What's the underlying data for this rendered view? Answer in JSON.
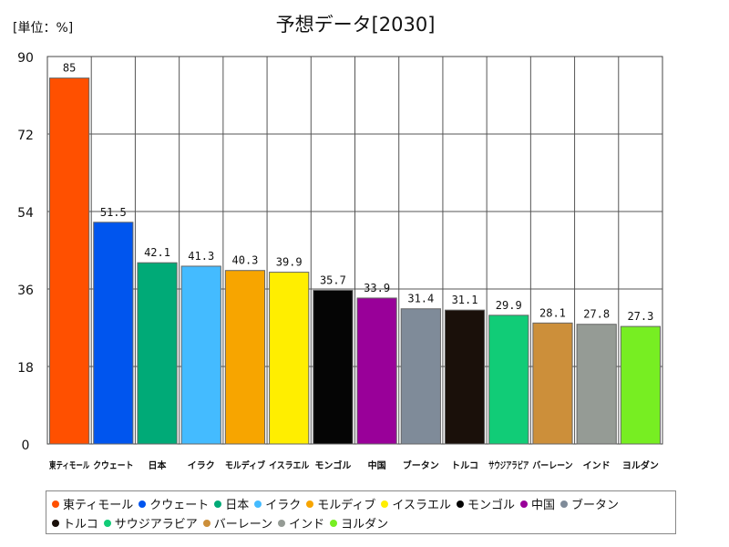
{
  "chart_data": {
    "type": "bar",
    "title": "予想データ[2030]",
    "unit_label": "[単位：%]",
    "xlabel": "",
    "ylabel": "",
    "ylim": [
      0,
      90
    ],
    "yticks": [
      0,
      18,
      36,
      54,
      72,
      90
    ],
    "grid": true,
    "legend_position": "bottom",
    "categories": [
      "東ティモール",
      "クウェート",
      "日本",
      "イラク",
      "モルディブ",
      "イスラエル",
      "モンゴル",
      "中国",
      "ブータン",
      "トルコ",
      "サウジアラビア",
      "バーレーン",
      "インド",
      "ヨルダン"
    ],
    "values": [
      85,
      51.5,
      42.1,
      41.3,
      40.3,
      39.9,
      35.7,
      33.9,
      31.4,
      31.1,
      29.9,
      28.1,
      27.8,
      27.3
    ],
    "value_labels": [
      "85",
      "51.5",
      "42.1",
      "41.3",
      "40.3",
      "39.9",
      "35.7",
      "33.9",
      "31.4",
      "31.1",
      "29.9",
      "28.1",
      "27.8",
      "27.3"
    ],
    "colors": [
      "#ff5000",
      "#0055ee",
      "#00aa77",
      "#44bbff",
      "#f7a500",
      "#ffee00",
      "#050505",
      "#990099",
      "#7f8b99",
      "#1a100a",
      "#11cc77",
      "#cc8f3a",
      "#959b95",
      "#77ee22"
    ]
  }
}
